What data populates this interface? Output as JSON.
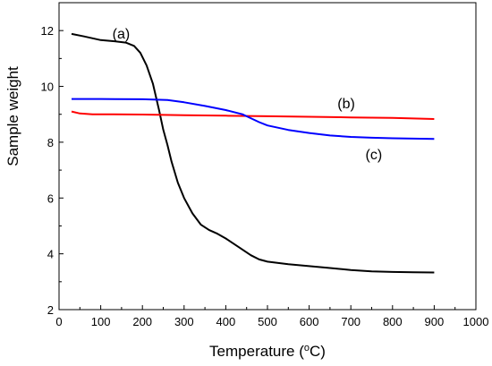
{
  "chart_data": {
    "type": "line",
    "xlabel": "Temperature (",
    "xlabel_unit_sup": "o",
    "xlabel_unit": "C)",
    "ylabel": "Sample weight",
    "xlim": [
      0,
      1000
    ],
    "ylim": [
      2,
      13
    ],
    "xticks": [
      0,
      100,
      200,
      300,
      400,
      500,
      600,
      700,
      800,
      900,
      1000
    ],
    "yticks": [
      2,
      4,
      6,
      8,
      10,
      12
    ],
    "grid": false,
    "series": [
      {
        "name": "(a)",
        "color": "#000000",
        "x": [
          30,
          60,
          100,
          130,
          160,
          180,
          195,
          210,
          225,
          240,
          250,
          260,
          270,
          285,
          300,
          320,
          340,
          360,
          380,
          400,
          430,
          460,
          480,
          500,
          550,
          600,
          650,
          700,
          750,
          800,
          850,
          900
        ],
        "y": [
          11.88,
          11.79,
          11.66,
          11.62,
          11.57,
          11.45,
          11.2,
          10.75,
          10.1,
          9.15,
          8.45,
          7.9,
          7.3,
          6.55,
          6.0,
          5.45,
          5.05,
          4.85,
          4.72,
          4.55,
          4.25,
          3.95,
          3.8,
          3.72,
          3.63,
          3.56,
          3.49,
          3.42,
          3.37,
          3.35,
          3.34,
          3.33
        ],
        "label_at": [
          128,
          11.87
        ]
      },
      {
        "name": "(b)",
        "color": "#ff0000",
        "x": [
          30,
          50,
          80,
          100,
          200,
          300,
          400,
          500,
          600,
          700,
          800,
          900
        ],
        "y": [
          9.1,
          9.03,
          9.0,
          9.0,
          8.99,
          8.97,
          8.95,
          8.93,
          8.91,
          8.89,
          8.87,
          8.83
        ],
        "label_at": [
          668,
          9.38
        ]
      },
      {
        "name": "(c)",
        "color": "#0000ff",
        "x": [
          30,
          100,
          200,
          260,
          300,
          350,
          400,
          440,
          460,
          480,
          500,
          550,
          600,
          650,
          700,
          750,
          800,
          850,
          900
        ],
        "y": [
          9.55,
          9.55,
          9.54,
          9.51,
          9.43,
          9.3,
          9.15,
          9.0,
          8.86,
          8.72,
          8.6,
          8.44,
          8.33,
          8.24,
          8.19,
          8.16,
          8.14,
          8.13,
          8.12
        ],
        "label_at": [
          735,
          7.55
        ]
      }
    ]
  }
}
